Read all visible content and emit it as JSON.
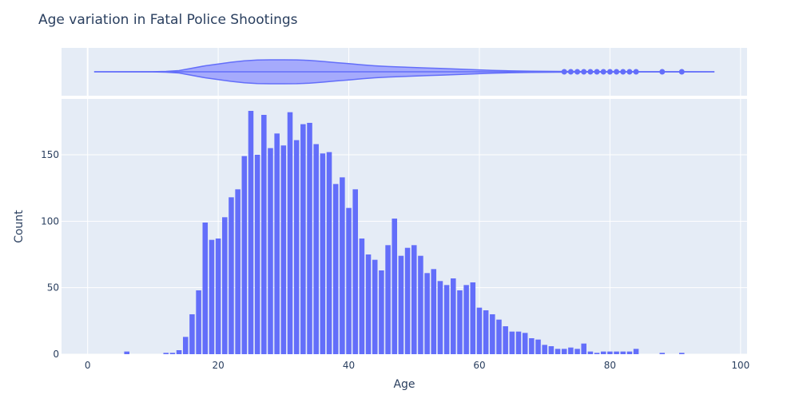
{
  "chart_data": {
    "type": "bar",
    "subtype": "histogram-with-violin-marginal",
    "title": "Age variation in Fatal Police Shootings",
    "xlabel": "Age",
    "ylabel": "Count",
    "xlim": [
      -4,
      101
    ],
    "ylim": [
      0,
      192
    ],
    "x_ticks": [
      0,
      20,
      40,
      60,
      80,
      100
    ],
    "y_ticks": [
      0,
      50,
      100,
      150
    ],
    "grid": true,
    "legend": "none",
    "colors": {
      "bar": "#636efa",
      "violin_fill": "#a5aafc",
      "violin_line": "#636efa",
      "plot_bg": "#e5ecf6",
      "grid": "#ffffff",
      "text": "#2a3f5f"
    },
    "bin_width": 1,
    "histogram": {
      "x": [
        6,
        12,
        13,
        14,
        15,
        16,
        17,
        18,
        19,
        20,
        21,
        22,
        23,
        24,
        25,
        26,
        27,
        28,
        29,
        30,
        31,
        32,
        33,
        34,
        35,
        36,
        37,
        38,
        39,
        40,
        41,
        42,
        43,
        44,
        45,
        46,
        47,
        48,
        49,
        50,
        51,
        52,
        53,
        54,
        55,
        56,
        57,
        58,
        59,
        60,
        61,
        62,
        63,
        64,
        65,
        66,
        67,
        68,
        69,
        70,
        71,
        72,
        73,
        74,
        75,
        76,
        77,
        78,
        79,
        80,
        81,
        82,
        83,
        84,
        88,
        91
      ],
      "values": [
        2,
        1,
        1,
        3,
        13,
        30,
        48,
        99,
        86,
        87,
        103,
        118,
        124,
        149,
        183,
        150,
        180,
        155,
        166,
        157,
        182,
        161,
        173,
        174,
        158,
        151,
        152,
        128,
        133,
        110,
        124,
        87,
        75,
        71,
        63,
        82,
        102,
        74,
        80,
        82,
        74,
        61,
        64,
        55,
        52,
        57,
        48,
        52,
        54,
        35,
        33,
        30,
        26,
        21,
        17,
        17,
        16,
        12,
        11,
        7,
        6,
        4,
        4,
        5,
        4,
        8,
        2,
        1,
        2,
        2,
        2,
        2,
        2,
        4,
        1,
        1
      ]
    },
    "violin": {
      "range": [
        1,
        96
      ],
      "density_profile": [
        [
          1,
          0
        ],
        [
          10,
          0.01
        ],
        [
          12,
          0.03
        ],
        [
          14,
          0.1
        ],
        [
          16,
          0.3
        ],
        [
          18,
          0.5
        ],
        [
          20,
          0.65
        ],
        [
          22,
          0.8
        ],
        [
          24,
          0.92
        ],
        [
          26,
          0.98
        ],
        [
          28,
          1.0
        ],
        [
          30,
          1.0
        ],
        [
          32,
          0.99
        ],
        [
          34,
          0.95
        ],
        [
          36,
          0.87
        ],
        [
          38,
          0.77
        ],
        [
          40,
          0.68
        ],
        [
          42,
          0.58
        ],
        [
          44,
          0.5
        ],
        [
          46,
          0.44
        ],
        [
          48,
          0.4
        ],
        [
          50,
          0.36
        ],
        [
          52,
          0.32
        ],
        [
          54,
          0.28
        ],
        [
          56,
          0.24
        ],
        [
          58,
          0.2
        ],
        [
          60,
          0.16
        ],
        [
          62,
          0.12
        ],
        [
          64,
          0.09
        ],
        [
          66,
          0.07
        ],
        [
          68,
          0.05
        ],
        [
          70,
          0.04
        ],
        [
          72,
          0.03
        ],
        [
          74,
          0.025
        ],
        [
          76,
          0.02
        ],
        [
          78,
          0.015
        ],
        [
          80,
          0.012
        ],
        [
          84,
          0.01
        ],
        [
          90,
          0.005
        ],
        [
          96,
          0
        ]
      ],
      "outliers": [
        73,
        74,
        75,
        76,
        77,
        78,
        79,
        80,
        81,
        82,
        83,
        84,
        88,
        91
      ]
    }
  }
}
